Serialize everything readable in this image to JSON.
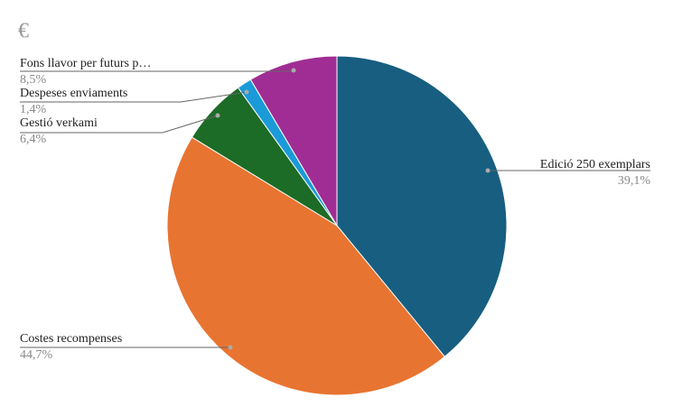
{
  "chart_data": {
    "type": "pie",
    "title": "€",
    "categories": [
      "Edició 250 exemplars",
      "Costes recompenses",
      "Gestió verkami",
      "Despeses enviaments",
      "Fons llavor per futurs p…"
    ],
    "values": [
      39.1,
      44.7,
      6.4,
      1.4,
      8.5
    ],
    "value_labels": [
      "39,1%",
      "44,7%",
      "6,4%",
      "1,4%",
      "8,5%"
    ],
    "colors": [
      "#175e80",
      "#e87431",
      "#1c6b26",
      "#1b9ad8",
      "#a02d93"
    ]
  }
}
